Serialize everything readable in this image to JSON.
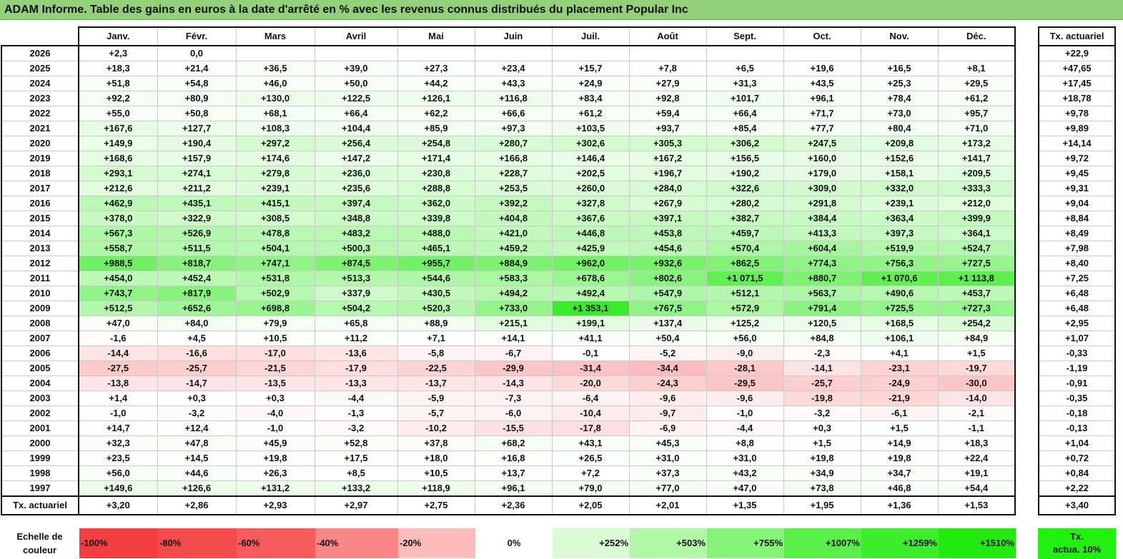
{
  "title": "ADAM Informe. Table des gains en euros à la date d'arrêté en % avec les revenus connus distribués du placement Popular Inc",
  "months": [
    "Janv.",
    "Févr.",
    "Mars",
    "Avril",
    "Mai",
    "Juin",
    "Juil.",
    "Août",
    "Sept.",
    "Oct.",
    "Nov.",
    "Déc."
  ],
  "side_header": "Tx. actuariel",
  "rows": [
    {
      "year": "2026",
      "values": [
        "+2,3",
        "0,0",
        "",
        "",
        "",
        "",
        "",
        "",
        "",
        "",
        "",
        ""
      ],
      "tx": "+22,9"
    },
    {
      "year": "2025",
      "values": [
        "+18,3",
        "+21,4",
        "+36,5",
        "+39,0",
        "+27,3",
        "+23,4",
        "+15,7",
        "+7,8",
        "+6,5",
        "+19,6",
        "+16,5",
        "+8,1"
      ],
      "tx": "+47,65"
    },
    {
      "year": "2024",
      "values": [
        "+51,8",
        "+54,8",
        "+46,0",
        "+50,0",
        "+44,2",
        "+43,3",
        "+24,9",
        "+27,9",
        "+31,3",
        "+43,5",
        "+25,3",
        "+29,5"
      ],
      "tx": "+17,45"
    },
    {
      "year": "2023",
      "values": [
        "+92,2",
        "+80,9",
        "+130,0",
        "+122,5",
        "+126,1",
        "+116,8",
        "+83,4",
        "+92,8",
        "+101,7",
        "+96,1",
        "+78,4",
        "+61,2"
      ],
      "tx": "+18,78"
    },
    {
      "year": "2022",
      "values": [
        "+55,0",
        "+50,8",
        "+68,1",
        "+66,4",
        "+62,2",
        "+66,6",
        "+61,2",
        "+59,4",
        "+66,4",
        "+71,7",
        "+73,0",
        "+95,7"
      ],
      "tx": "+9,78"
    },
    {
      "year": "2021",
      "values": [
        "+167,6",
        "+127,7",
        "+108,3",
        "+104,4",
        "+85,9",
        "+97,3",
        "+103,5",
        "+93,7",
        "+85,4",
        "+77,7",
        "+80,4",
        "+71,0"
      ],
      "tx": "+9,89"
    },
    {
      "year": "2020",
      "values": [
        "+149,9",
        "+190,4",
        "+297,2",
        "+256,4",
        "+254,8",
        "+280,7",
        "+302,6",
        "+305,3",
        "+306,2",
        "+247,5",
        "+209,8",
        "+173,2"
      ],
      "tx": "+14,14"
    },
    {
      "year": "2019",
      "values": [
        "+168,6",
        "+157,9",
        "+174,6",
        "+147,2",
        "+171,4",
        "+166,8",
        "+146,4",
        "+167,2",
        "+156,5",
        "+160,0",
        "+152,6",
        "+141,7"
      ],
      "tx": "+9,72"
    },
    {
      "year": "2018",
      "values": [
        "+293,1",
        "+274,1",
        "+279,8",
        "+236,0",
        "+230,8",
        "+228,7",
        "+202,5",
        "+196,7",
        "+190,2",
        "+179,0",
        "+158,1",
        "+209,5"
      ],
      "tx": "+9,45"
    },
    {
      "year": "2017",
      "values": [
        "+212,6",
        "+211,2",
        "+239,1",
        "+235,6",
        "+288,8",
        "+253,5",
        "+260,0",
        "+284,0",
        "+322,6",
        "+309,0",
        "+332,0",
        "+333,3"
      ],
      "tx": "+9,31"
    },
    {
      "year": "2016",
      "values": [
        "+462,9",
        "+435,1",
        "+415,1",
        "+397,4",
        "+362,0",
        "+392,2",
        "+327,8",
        "+267,9",
        "+280,2",
        "+291,8",
        "+239,1",
        "+212,0"
      ],
      "tx": "+9,04"
    },
    {
      "year": "2015",
      "values": [
        "+378,0",
        "+322,9",
        "+308,5",
        "+348,8",
        "+339,8",
        "+404,8",
        "+367,6",
        "+397,1",
        "+382,7",
        "+384,4",
        "+363,4",
        "+399,9"
      ],
      "tx": "+8,84"
    },
    {
      "year": "2014",
      "values": [
        "+567,3",
        "+526,9",
        "+478,8",
        "+483,2",
        "+488,0",
        "+421,0",
        "+446,8",
        "+453,8",
        "+459,7",
        "+413,3",
        "+397,3",
        "+364,1"
      ],
      "tx": "+8,49"
    },
    {
      "year": "2013",
      "values": [
        "+558,7",
        "+511,5",
        "+504,1",
        "+500,3",
        "+465,1",
        "+459,2",
        "+425,9",
        "+454,6",
        "+570,4",
        "+604,4",
        "+519,9",
        "+524,7"
      ],
      "tx": "+7,98"
    },
    {
      "year": "2012",
      "values": [
        "+988,5",
        "+818,7",
        "+747,1",
        "+874,5",
        "+955,7",
        "+884,9",
        "+962,0",
        "+932,6",
        "+862,5",
        "+774,3",
        "+756,3",
        "+727,5"
      ],
      "tx": "+8,40"
    },
    {
      "year": "2011",
      "values": [
        "+454,0",
        "+452,4",
        "+531,8",
        "+513,3",
        "+544,6",
        "+583,3",
        "+678,6",
        "+802,6",
        "+1 071,5",
        "+880,7",
        "+1 070,6",
        "+1 113,8"
      ],
      "tx": "+7,25"
    },
    {
      "year": "2010",
      "values": [
        "+743,7",
        "+817,9",
        "+502,9",
        "+337,9",
        "+430,5",
        "+494,2",
        "+492,4",
        "+547,9",
        "+512,1",
        "+563,7",
        "+490,6",
        "+453,7"
      ],
      "tx": "+6,48"
    },
    {
      "year": "2009",
      "values": [
        "+512,5",
        "+652,6",
        "+698,8",
        "+504,2",
        "+520,3",
        "+733,0",
        "+1 353,1",
        "+767,5",
        "+572,9",
        "+791,4",
        "+725,5",
        "+727,3"
      ],
      "tx": "+6,48"
    },
    {
      "year": "2008",
      "values": [
        "+47,0",
        "+84,0",
        "+79,9",
        "+65,8",
        "+88,9",
        "+215,1",
        "+199,1",
        "+137,4",
        "+125,2",
        "+120,5",
        "+168,5",
        "+254,2"
      ],
      "tx": "+2,95"
    },
    {
      "year": "2007",
      "values": [
        "-1,6",
        "+4,5",
        "+10,5",
        "+11,2",
        "+7,1",
        "+14,1",
        "+41,1",
        "+50,4",
        "+56,0",
        "+84,8",
        "+106,1",
        "+84,9"
      ],
      "tx": "+1,07"
    },
    {
      "year": "2006",
      "values": [
        "-14,4",
        "-16,6",
        "-17,0",
        "-13,6",
        "-5,8",
        "-6,7",
        "-0,1",
        "-5,2",
        "-9,0",
        "-2,3",
        "+4,1",
        "+1,5"
      ],
      "tx": "-0,33"
    },
    {
      "year": "2005",
      "values": [
        "-27,5",
        "-25,7",
        "-21,5",
        "-17,9",
        "-22,5",
        "-29,9",
        "-31,4",
        "-34,4",
        "-28,1",
        "-14,1",
        "-23,1",
        "-19,7"
      ],
      "tx": "-1,19"
    },
    {
      "year": "2004",
      "values": [
        "-13,8",
        "-14,7",
        "-13,5",
        "-13,3",
        "-13,7",
        "-14,3",
        "-20,0",
        "-24,3",
        "-29,5",
        "-25,7",
        "-24,9",
        "-30,0"
      ],
      "tx": "-0,91"
    },
    {
      "year": "2003",
      "values": [
        "+1,4",
        "+0,3",
        "+0,3",
        "-4,4",
        "-5,9",
        "-7,3",
        "-6,4",
        "-9,6",
        "-9,6",
        "-19,8",
        "-21,9",
        "-14,0"
      ],
      "tx": "-0,35"
    },
    {
      "year": "2002",
      "values": [
        "-1,0",
        "-3,2",
        "-4,0",
        "-1,3",
        "-5,7",
        "-6,0",
        "-10,4",
        "-9,7",
        "-1,0",
        "-3,2",
        "-6,1",
        "-2,1"
      ],
      "tx": "-0,18"
    },
    {
      "year": "2001",
      "values": [
        "+14,7",
        "+12,4",
        "-1,0",
        "-3,2",
        "-10,2",
        "-15,5",
        "-17,8",
        "-6,9",
        "-4,4",
        "+0,3",
        "+1,5",
        "-1,1"
      ],
      "tx": "-0,13"
    },
    {
      "year": "2000",
      "values": [
        "+32,3",
        "+47,8",
        "+45,9",
        "+52,8",
        "+37,8",
        "+68,2",
        "+43,1",
        "+45,3",
        "+8,8",
        "+1,5",
        "+14,9",
        "+18,3"
      ],
      "tx": "+1,04"
    },
    {
      "year": "1999",
      "values": [
        "+23,5",
        "+14,5",
        "+19,8",
        "+17,5",
        "+18,0",
        "+16,8",
        "+26,5",
        "+31,0",
        "+31,0",
        "+19,8",
        "+19,8",
        "+22,4"
      ],
      "tx": "+0,72"
    },
    {
      "year": "1998",
      "values": [
        "+56,0",
        "+44,6",
        "+26,3",
        "+8,5",
        "+10,5",
        "+13,7",
        "+7,2",
        "+37,3",
        "+43,2",
        "+34,9",
        "+34,7",
        "+19,1"
      ],
      "tx": "+0,84"
    },
    {
      "year": "1997",
      "values": [
        "+149,6",
        "+126,6",
        "+131,2",
        "+133,2",
        "+118,9",
        "+96,1",
        "+79,0",
        "+77,0",
        "+47,0",
        "+73,8",
        "+46,8",
        "+54,4"
      ],
      "tx": "+2,22"
    }
  ],
  "footer": {
    "label": "Tx. actuariel",
    "values": [
      "+3,20",
      "+2,86",
      "+2,93",
      "+2,97",
      "+2,75",
      "+2,36",
      "+2,05",
      "+2,01",
      "+1,35",
      "+1,95",
      "+1,36",
      "+1,53"
    ],
    "tx": "+3,40"
  },
  "legend": {
    "label_line1": "Echelle de",
    "label_line2": "couleur",
    "items": [
      {
        "label": "-100%",
        "color": "#f33f3f",
        "kind": "neg"
      },
      {
        "label": "-80%",
        "color": "#f44c4c",
        "kind": "neg"
      },
      {
        "label": "-60%",
        "color": "#f65c5c",
        "kind": "neg"
      },
      {
        "label": "-40%",
        "color": "#f98787",
        "kind": "neg"
      },
      {
        "label": "-20%",
        "color": "#fbbcbc",
        "kind": "neg"
      },
      {
        "label": "0%",
        "color": "#ffffff",
        "kind": "zero"
      },
      {
        "label": "+252%",
        "color": "#d9fbd4",
        "kind": "pos"
      },
      {
        "label": "+503%",
        "color": "#b2f7a8",
        "kind": "pos"
      },
      {
        "label": "+755%",
        "color": "#86f479",
        "kind": "pos"
      },
      {
        "label": "+1007%",
        "color": "#5af049",
        "kind": "pos"
      },
      {
        "label": "+1259%",
        "color": "#3ded2b",
        "kind": "pos"
      },
      {
        "label": "+1510%",
        "color": "#22e90e",
        "kind": "pos"
      }
    ],
    "tx_line1": "Tx.",
    "tx_line2": "actua. 10%"
  }
}
